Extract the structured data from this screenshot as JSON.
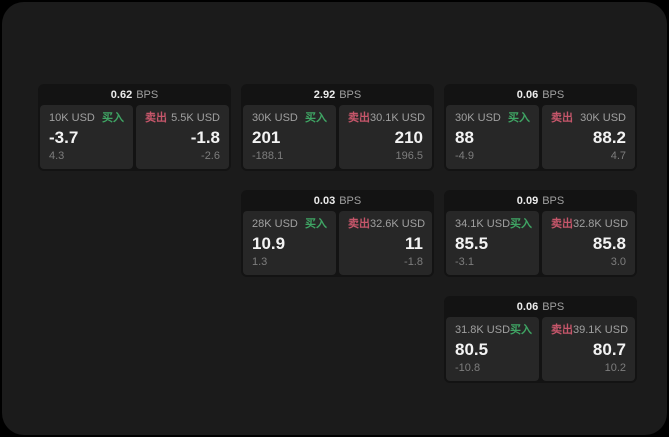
{
  "labels": {
    "bps_suffix": "BPS",
    "buy": "买入",
    "sell": "卖出"
  },
  "colors": {
    "outer_bg": "#000000",
    "page_bg": "#1b1b1b",
    "card_bg": "#131313",
    "tile_bg": "#272727",
    "buy": "#3fa564",
    "sell": "#c5566a",
    "big_text": "#f3f3f3",
    "header_value": "#ececec",
    "muted_text": "#a0a0a0",
    "sub_text": "#7d7d7d"
  },
  "cards": [
    {
      "bps": "0.62",
      "grid": {
        "col": 1,
        "row": 1
      },
      "buy": {
        "amount": "10K USD",
        "value": "-3.7",
        "sub": "4.3"
      },
      "sell": {
        "amount": "5.5K USD",
        "value": "-1.8",
        "sub": "-2.6"
      }
    },
    {
      "bps": "2.92",
      "grid": {
        "col": 2,
        "row": 1
      },
      "buy": {
        "amount": "30K USD",
        "value": "201",
        "sub": "-188.1"
      },
      "sell": {
        "amount": "30.1K USD",
        "value": "210",
        "sub": "196.5"
      }
    },
    {
      "bps": "0.06",
      "grid": {
        "col": 3,
        "row": 1
      },
      "buy": {
        "amount": "30K USD",
        "value": "88",
        "sub": "-4.9"
      },
      "sell": {
        "amount": "30K USD",
        "value": "88.2",
        "sub": "4.7"
      }
    },
    {
      "bps": "0.03",
      "grid": {
        "col": 2,
        "row": 2
      },
      "buy": {
        "amount": "28K USD",
        "value": "10.9",
        "sub": "1.3"
      },
      "sell": {
        "amount": "32.6K USD",
        "value": "11",
        "sub": "-1.8"
      }
    },
    {
      "bps": "0.09",
      "grid": {
        "col": 3,
        "row": 2
      },
      "buy": {
        "amount": "34.1K USD",
        "value": "85.5",
        "sub": "-3.1"
      },
      "sell": {
        "amount": "32.8K USD",
        "value": "85.8",
        "sub": "3.0"
      }
    },
    {
      "bps": "0.06",
      "grid": {
        "col": 3,
        "row": 3
      },
      "buy": {
        "amount": "31.8K USD",
        "value": "80.5",
        "sub": "-10.8"
      },
      "sell": {
        "amount": "39.1K USD",
        "value": "80.7",
        "sub": "10.2"
      }
    }
  ]
}
